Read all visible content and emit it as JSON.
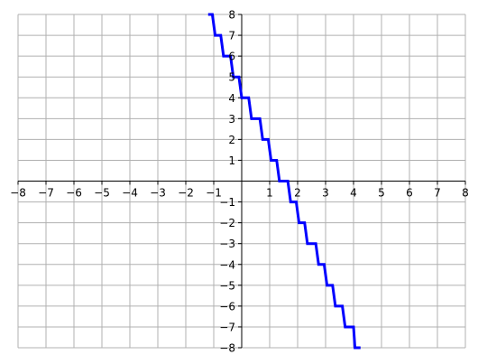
{
  "chart_data": {
    "type": "line",
    "title": "",
    "xlabel": "",
    "ylabel": "",
    "xlim": [
      -8,
      8
    ],
    "ylim": [
      -8,
      8
    ],
    "grid": true,
    "axes_through_origin": true,
    "x_ticks": [
      -8,
      -7,
      -6,
      -5,
      -4,
      -3,
      -2,
      -1,
      1,
      2,
      3,
      4,
      5,
      6,
      7,
      8
    ],
    "y_ticks": [
      -8,
      -7,
      -6,
      -5,
      -4,
      -3,
      -2,
      -1,
      1,
      2,
      3,
      4,
      5,
      6,
      7,
      8
    ],
    "x_tick_labels": [
      "−8",
      "−7",
      "−6",
      "−5",
      "−4",
      "−3",
      "−2",
      "−1",
      "1",
      "2",
      "3",
      "4",
      "5",
      "6",
      "7",
      "8"
    ],
    "y_tick_labels": [
      "−8",
      "−7",
      "−6",
      "−5",
      "−4",
      "−3",
      "−2",
      "−1",
      "1",
      "2",
      "3",
      "4",
      "5",
      "6",
      "7",
      "8"
    ],
    "series": [
      {
        "style": "step",
        "color": "#0000ff",
        "steps": [
          {
            "y": 8,
            "x_start": -1.2,
            "x_end": -1.05
          },
          {
            "y": 7,
            "x_start": -0.95,
            "x_end": -0.75
          },
          {
            "y": 6,
            "x_start": -0.65,
            "x_end": -0.4
          },
          {
            "y": 5,
            "x_start": -0.3,
            "x_end": -0.1
          },
          {
            "y": 4,
            "x_start": 0,
            "x_end": 0.25
          },
          {
            "y": 3,
            "x_start": 0.35,
            "x_end": 0.65
          },
          {
            "y": 2,
            "x_start": 0.75,
            "x_end": 0.95
          },
          {
            "y": 1,
            "x_start": 1.05,
            "x_end": 1.25
          },
          {
            "y": 0,
            "x_start": 1.35,
            "x_end": 1.65
          },
          {
            "y": -1,
            "x_start": 1.75,
            "x_end": 1.95
          },
          {
            "y": -2,
            "x_start": 2.05,
            "x_end": 2.25
          },
          {
            "y": -3,
            "x_start": 2.35,
            "x_end": 2.65
          },
          {
            "y": -4,
            "x_start": 2.75,
            "x_end": 2.95
          },
          {
            "y": -5,
            "x_start": 3.05,
            "x_end": 3.25
          },
          {
            "y": -6,
            "x_start": 3.35,
            "x_end": 3.6
          },
          {
            "y": -7,
            "x_start": 3.7,
            "x_end": 4.0
          },
          {
            "y": -8,
            "x_start": 4.05,
            "x_end": 4.25
          }
        ]
      }
    ]
  }
}
